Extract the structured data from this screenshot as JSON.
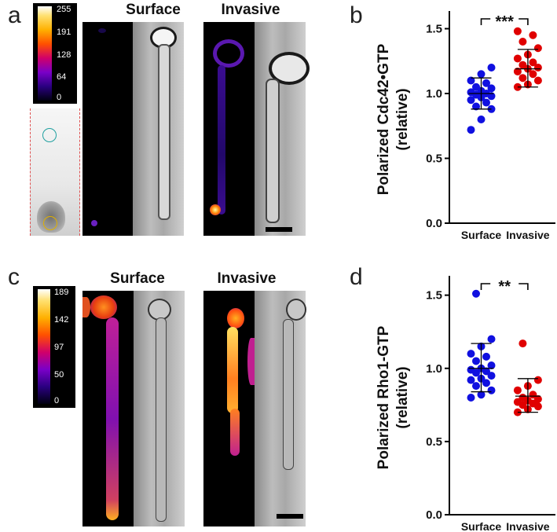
{
  "panels": {
    "a": {
      "letter": "a",
      "col_titles": [
        "Surface",
        "Invasive"
      ],
      "colorbar_ticks": [
        "255",
        "191",
        "128",
        "64",
        "0"
      ]
    },
    "b": {
      "letter": "b"
    },
    "c": {
      "letter": "c",
      "col_titles": [
        "Surface",
        "Invasive"
      ],
      "colorbar_ticks": [
        "189",
        "142",
        "97",
        "50",
        "0"
      ]
    },
    "d": {
      "letter": "d"
    }
  },
  "colors": {
    "surface": "#1010e0",
    "invasive": "#e00000"
  },
  "chart_data": [
    {
      "type": "scatter",
      "panel": "b",
      "ylabel": "Polarized Cdc42•GTP\n(relative)",
      "ylabel_line1": "Polarized Cdc42•GTP",
      "ylabel_line2": "(relative)",
      "categories": [
        "Surface",
        "Invasive"
      ],
      "ylim": [
        0,
        1.6
      ],
      "yticks": [
        "0.0",
        "0.5",
        "1.0",
        "1.5"
      ],
      "significance": "***",
      "series": [
        {
          "values": [
            0.72,
            0.8,
            0.88,
            0.9,
            0.93,
            0.95,
            0.97,
            0.98,
            0.99,
            1.0,
            1.01,
            1.02,
            1.04,
            1.05,
            1.08,
            1.1,
            1.15,
            1.2
          ],
          "mean": 1.0,
          "sd_low": 0.88,
          "sd_high": 1.12
        },
        {
          "values": [
            1.05,
            1.07,
            1.1,
            1.12,
            1.15,
            1.17,
            1.19,
            1.2,
            1.22,
            1.24,
            1.27,
            1.3,
            1.35,
            1.4,
            1.45,
            1.48
          ],
          "mean": 1.19,
          "sd_low": 1.05,
          "sd_high": 1.34
        }
      ]
    },
    {
      "type": "scatter",
      "panel": "d",
      "ylabel_line1": "Polarized Rho1-GTP",
      "ylabel_line2": "(relative)",
      "categories": [
        "Surface",
        "Invasive"
      ],
      "ylim": [
        0,
        1.6
      ],
      "yticks": [
        "0.0",
        "0.5",
        "1.0",
        "1.5"
      ],
      "significance": "**",
      "series": [
        {
          "values": [
            0.8,
            0.82,
            0.85,
            0.88,
            0.9,
            0.92,
            0.93,
            0.95,
            0.97,
            0.98,
            0.99,
            1.0,
            1.02,
            1.05,
            1.08,
            1.1,
            1.15,
            1.2,
            1.51
          ],
          "mean": 1.0,
          "sd_low": 0.84,
          "sd_high": 1.17
        },
        {
          "values": [
            0.7,
            0.72,
            0.74,
            0.75,
            0.76,
            0.77,
            0.78,
            0.79,
            0.8,
            0.82,
            0.85,
            0.88,
            0.92,
            1.17
          ],
          "mean": 0.81,
          "sd_low": 0.7,
          "sd_high": 0.93
        }
      ]
    }
  ]
}
